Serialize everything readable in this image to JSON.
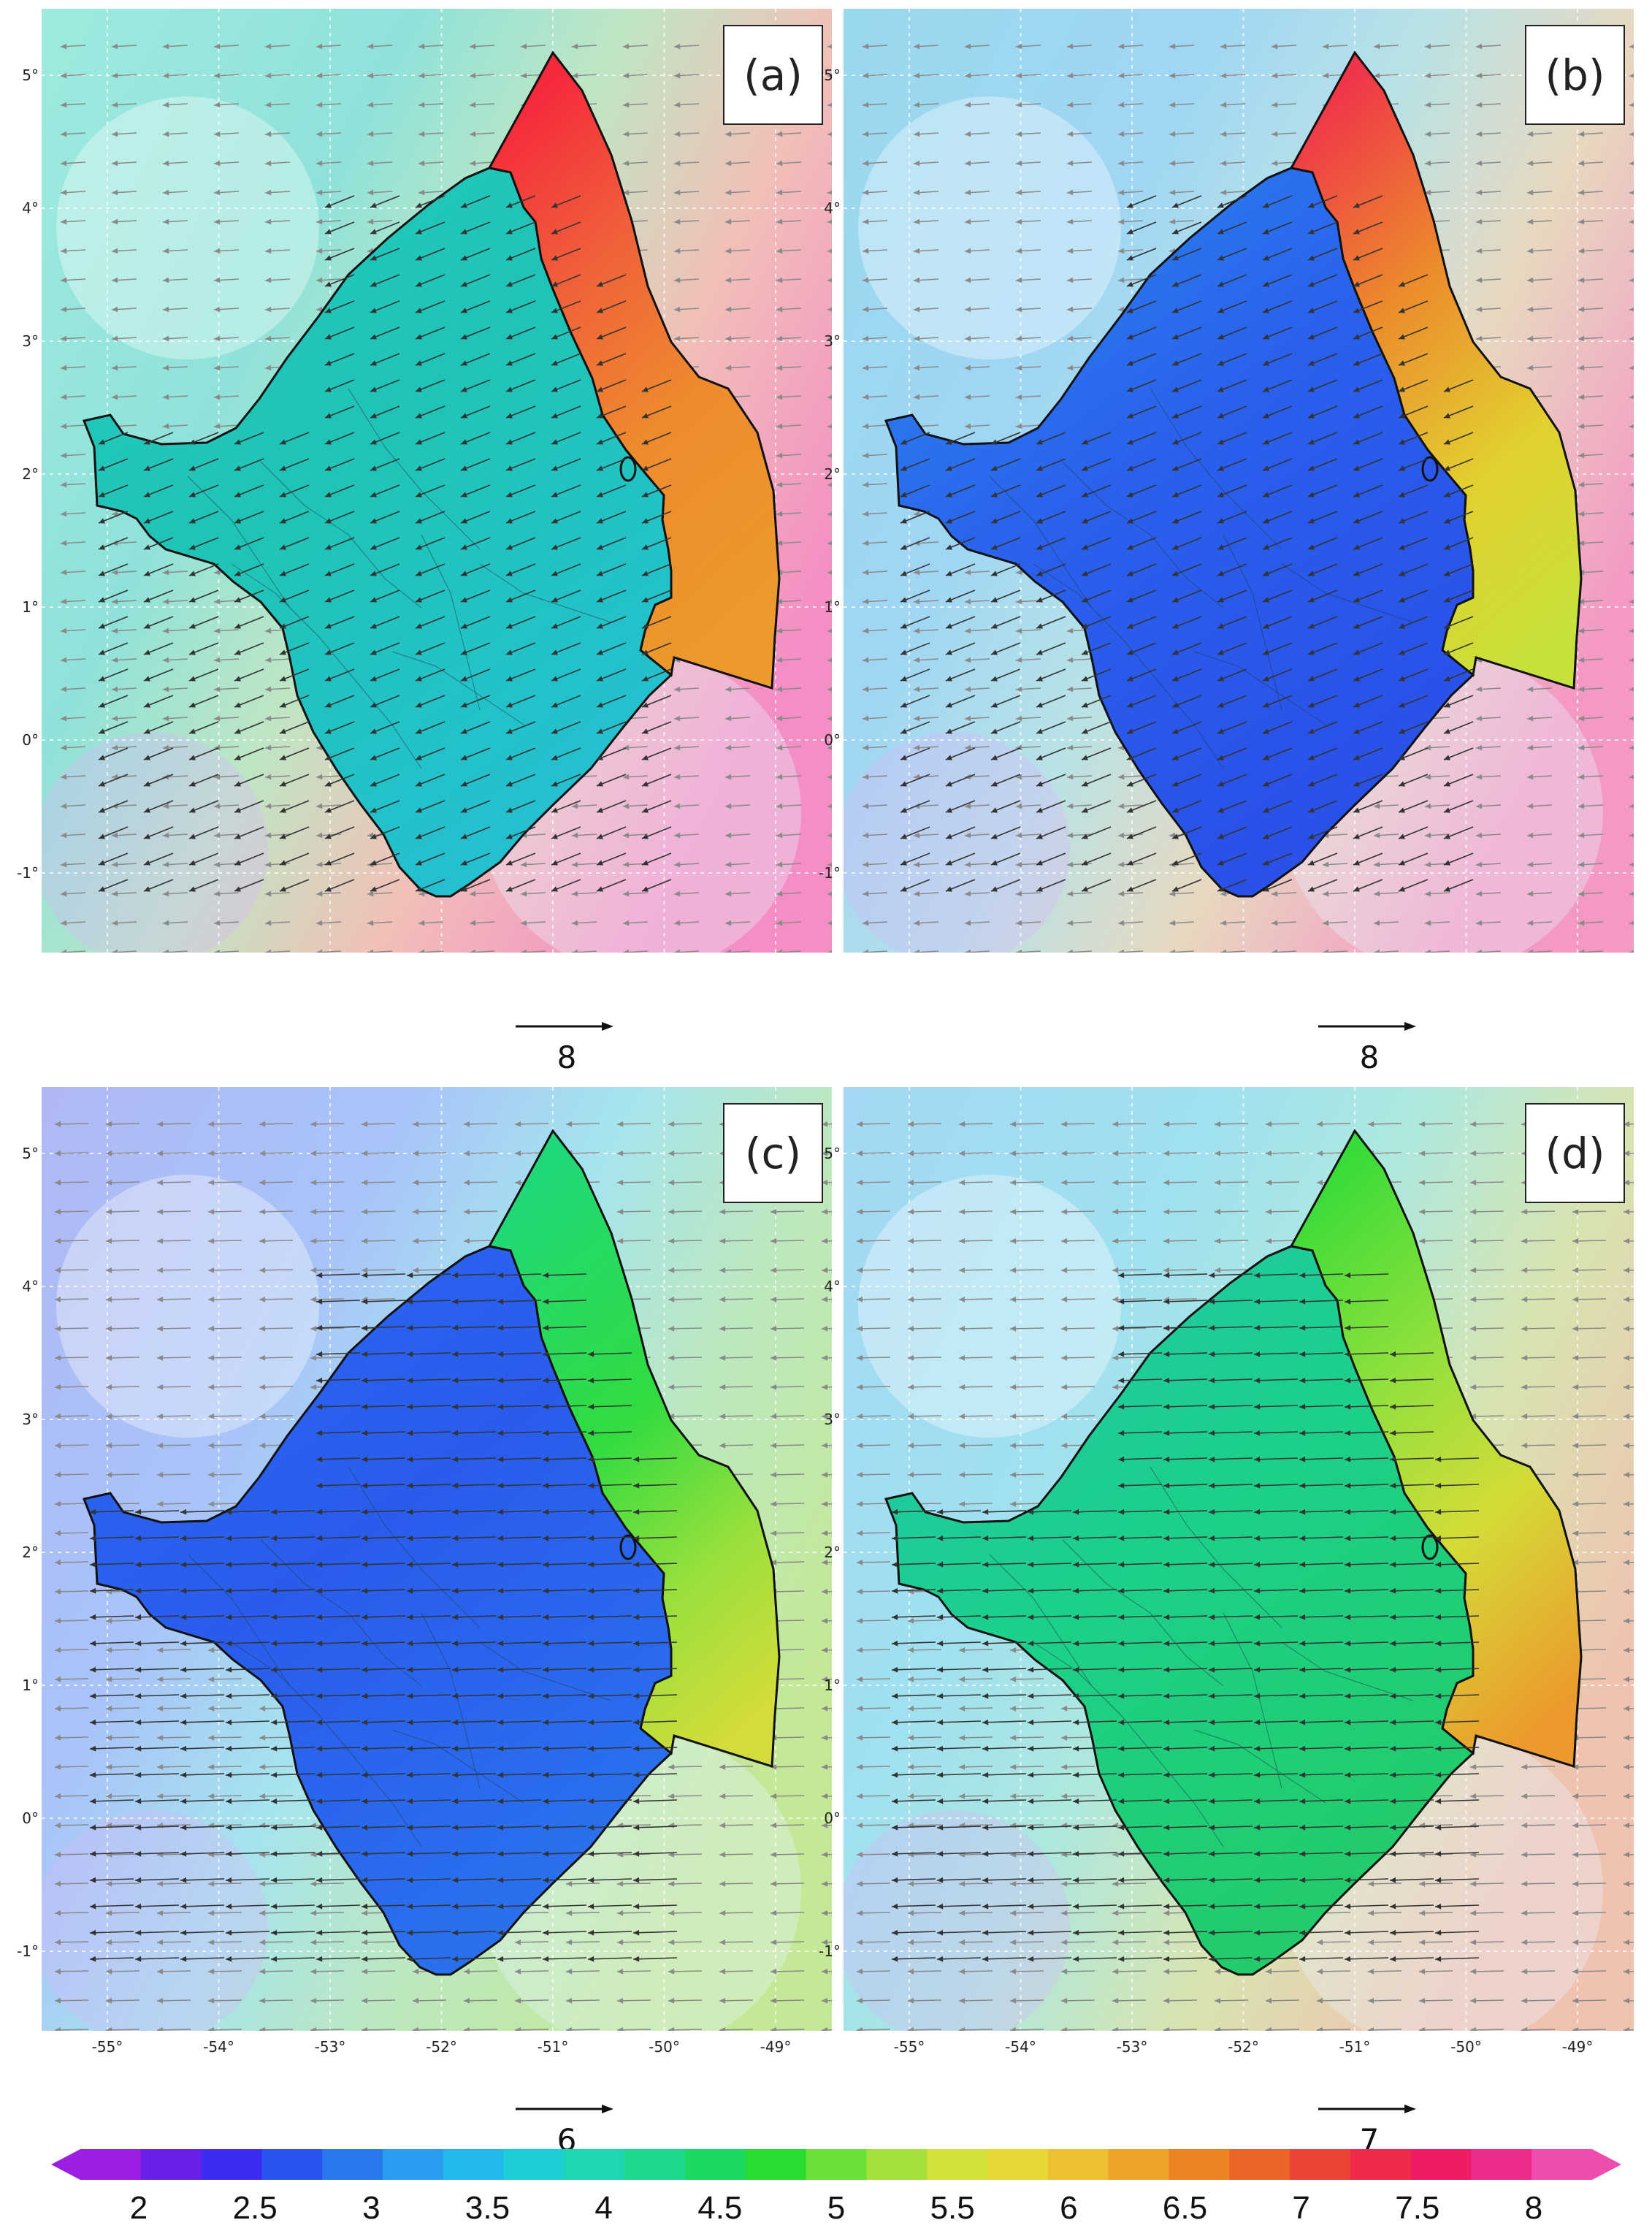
{
  "panels": [
    {
      "label": "(a)",
      "ref_vector": "8",
      "scheme": "a"
    },
    {
      "label": "(b)",
      "ref_vector": "8",
      "scheme": "b"
    },
    {
      "label": "(c)",
      "ref_vector": "6",
      "scheme": "c"
    },
    {
      "label": "(d)",
      "ref_vector": "7",
      "scheme": "d"
    }
  ],
  "axes": {
    "latitude_ticks": [
      "5°",
      "4°",
      "3°",
      "2°",
      "1°",
      "0°",
      "-1°"
    ],
    "longitude_ticks": [
      "-55°",
      "-54°",
      "-53°",
      "-52°",
      "-51°",
      "-50°",
      "-49°"
    ]
  },
  "colorbar": {
    "labels": [
      "2",
      "2.5",
      "3",
      "3.5",
      "4",
      "4.5",
      "5",
      "5.5",
      "6",
      "6.5",
      "7",
      "7.5",
      "8"
    ],
    "colors": [
      "#9b1fe0",
      "#6a1fe8",
      "#3a2cf0",
      "#2a52ee",
      "#2a78ee",
      "#2a9cf0",
      "#22b8ea",
      "#1ccfd6",
      "#1cd7b0",
      "#1cd88a",
      "#1cd860",
      "#28dc30",
      "#6ce03a",
      "#a6e03c",
      "#d4e03c",
      "#e8d638",
      "#ecc030",
      "#eca428",
      "#ec8424",
      "#ec6426",
      "#ec4434",
      "#ee2a48",
      "#ee1c64",
      "#ee2a8a",
      "#ee4cae"
    ]
  }
}
